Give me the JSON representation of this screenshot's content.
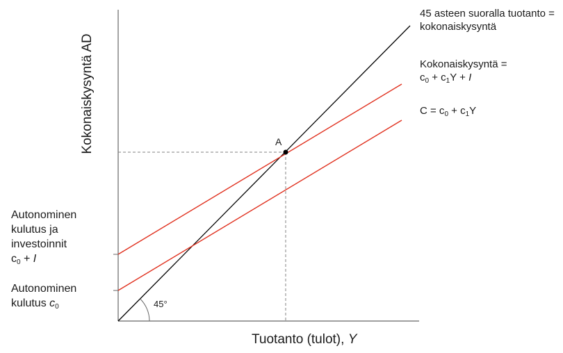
{
  "axes": {
    "y_label": "Kokonaiskysyntä AD",
    "x_label_text": "Tuotanto (tulot), ",
    "x_label_var": "Y"
  },
  "lines": {
    "line45": {
      "label_l1": "45 asteen suoralla tuotanto =",
      "label_l2": "kokonaiskysyntä",
      "color": "#000000"
    },
    "ad": {
      "label_l1": "Kokonaiskysyntä =",
      "label_l2": {
        "a": "c",
        "sub1": "0",
        "b": " + c",
        "sub2": "1",
        "c": "Y + ",
        "d": "I"
      },
      "color": "#e0301e"
    },
    "consumption": {
      "label": {
        "a": "C = c",
        "sub1": "0",
        "b": " + c",
        "sub2": "1",
        "c": "Y"
      },
      "color": "#e0301e"
    }
  },
  "intercepts": {
    "ad": {
      "l1": "Autonominen",
      "l2": "kulutus ja",
      "l3": "investoinnit",
      "l4": {
        "a": "c",
        "sub": "0",
        "b": " + ",
        "c": "I"
      }
    },
    "consumption": {
      "l1": "Autonominen",
      "l2": {
        "a": "kulutus ",
        "b": "c",
        "sub": "0"
      }
    }
  },
  "equilibrium": {
    "label": "A"
  },
  "angle": {
    "label": "45°"
  },
  "guide_color": "#808080"
}
